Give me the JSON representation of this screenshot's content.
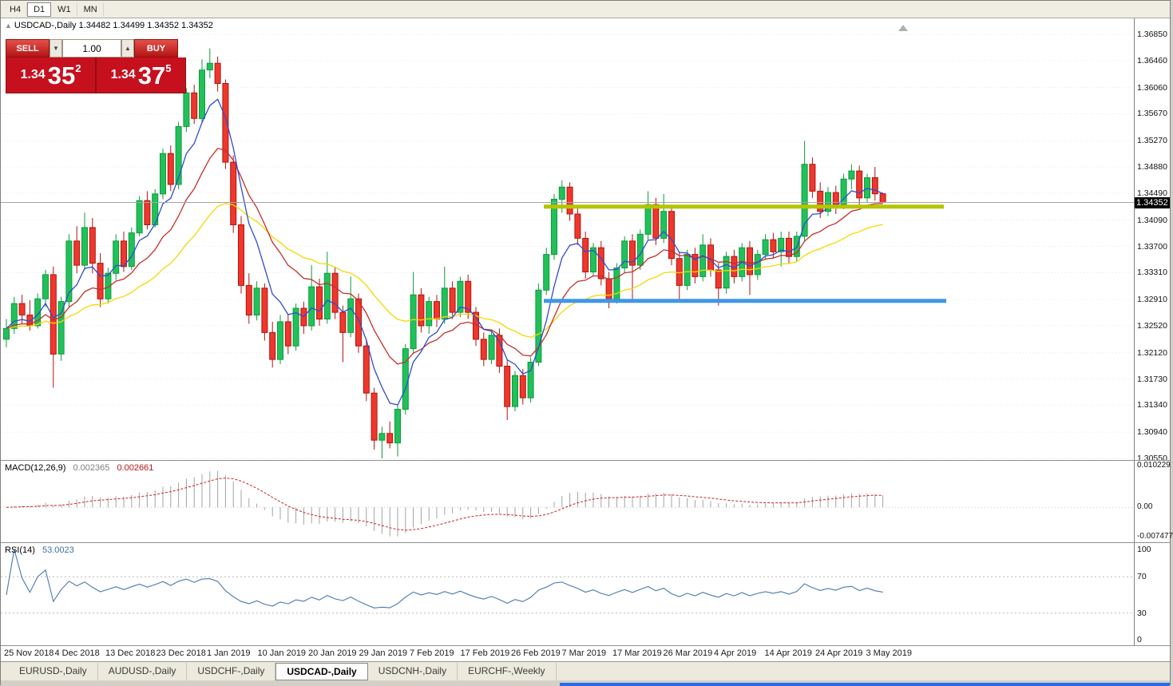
{
  "window": {
    "toolbar_tabs": [
      {
        "label": "H4",
        "active": false
      },
      {
        "label": "D1",
        "active": true
      },
      {
        "label": "W1",
        "active": false
      },
      {
        "label": "MN",
        "active": false
      }
    ]
  },
  "chart": {
    "title_line": "USDCAD-,Daily  1.34482 1.34499 1.34352 1.34352",
    "symbol": "USDCAD-,Daily",
    "open": "1.34482",
    "high": "1.34499",
    "low": "1.34352",
    "close": "1.34352"
  },
  "trade_panel": {
    "sell_label": "SELL",
    "buy_label": "BUY",
    "volume": "1.00",
    "spin_down": "▼",
    "spin_up": "▲",
    "sell_price": {
      "main": "1.34",
      "pips": "35",
      "sup": "2"
    },
    "buy_price": {
      "main": "1.34",
      "pips": "37",
      "sup": "5"
    }
  },
  "price_axis": {
    "labels": [
      "1.36850",
      "1.36460",
      "1.36060",
      "1.35670",
      "1.35270",
      "1.34880",
      "1.34490",
      "1.34090",
      "1.33700",
      "1.33310",
      "1.32910",
      "1.32520",
      "1.32120",
      "1.31730",
      "1.31340",
      "1.30940",
      "1.30550"
    ],
    "current": "1.34352",
    "current_value": 1.34352
  },
  "macd_panel": {
    "label": "MACD(12,26,9)",
    "value1": "0.002365",
    "value2": "0.002661",
    "axis": {
      "max_label": "0.010229",
      "zero_label": "0.00",
      "min_label": "-0.007477",
      "max": 0.010229,
      "min": -0.007477
    },
    "params": {
      "fast": 12,
      "slow": 26,
      "signal": 9
    }
  },
  "rsi_panel": {
    "label": "RSI(14)",
    "value": "53.0023",
    "period": 14,
    "axis_labels": {
      "top": "100",
      "upper": "70",
      "lower": "30",
      "bottom": "0"
    },
    "levels": [
      70,
      30
    ]
  },
  "date_axis": {
    "labels": [
      "25 Nov 2018",
      "4 Dec 2018",
      "13 Dec 2018",
      "23 Dec 2018",
      "1 Jan 2019",
      "10 Jan 2019",
      "20 Jan 2019",
      "29 Jan 2019",
      "7 Feb 2019",
      "17 Feb 2019",
      "26 Feb 2019",
      "7 Mar 2019",
      "17 Mar 2019",
      "26 Mar 2019",
      "4 Apr 2019",
      "14 Apr 2019",
      "24 Apr 2019",
      "3 May 2019"
    ]
  },
  "bottom_tabs": [
    {
      "label": "EURUSD-,Daily",
      "active": false
    },
    {
      "label": "AUDUSD-,Daily",
      "active": false
    },
    {
      "label": "USDCHF-,Daily",
      "active": false
    },
    {
      "label": "USDCAD-,Daily",
      "active": true
    },
    {
      "label": "USDCNH-,Daily",
      "active": false
    },
    {
      "label": "EURCHF-,Weekly",
      "active": false
    }
  ],
  "colors": {
    "candle_up": "#0e9a3c",
    "candle_up_fill": "#21c15a",
    "candle_down": "#b01410",
    "candle_down_fill": "#ef372c",
    "ma_fast": "#2f4cd0",
    "ma_mid": "#c33028",
    "ma_slow": "#f5d800",
    "macd_hist": "#a3a3a3",
    "macd_signal": "#cf1f1f",
    "rsi_line": "#4878b0",
    "grid": "#e8e8e8",
    "current_line": "#a6a6a6"
  },
  "chart_data": {
    "type": "candlestick",
    "symbol": "USDCAD",
    "timeframe": "Daily",
    "ylim": [
      1.3055,
      1.3685
    ],
    "overlays": {
      "ma_fast": {
        "period": 6
      },
      "ma_mid": {
        "period": 14
      },
      "ma_slow": {
        "period": 30
      }
    },
    "lines": [
      {
        "name": "resistance",
        "price": 1.3429,
        "color": "#b5c400",
        "x1": 680,
        "x2": 1181,
        "width": 5
      },
      {
        "name": "support",
        "price": 1.3289,
        "color": "#3f96e8",
        "x1": 680,
        "x2": 1184,
        "width": 5
      }
    ],
    "candles": [
      [
        1.3232,
        1.3262,
        1.322,
        1.3248
      ],
      [
        1.3248,
        1.3295,
        1.324,
        1.3285
      ],
      [
        1.3285,
        1.3298,
        1.3255,
        1.3268
      ],
      [
        1.3268,
        1.329,
        1.3245,
        1.3252
      ],
      [
        1.3252,
        1.33,
        1.3248,
        1.3292
      ],
      [
        1.3292,
        1.3335,
        1.328,
        1.3328
      ],
      [
        1.3328,
        1.334,
        1.316,
        1.321
      ],
      [
        1.321,
        1.3295,
        1.32,
        1.3288
      ],
      [
        1.3288,
        1.3388,
        1.328,
        1.3378
      ],
      [
        1.3378,
        1.34,
        1.333,
        1.3342
      ],
      [
        1.3342,
        1.342,
        1.3335,
        1.3398
      ],
      [
        1.3398,
        1.3412,
        1.333,
        1.3345
      ],
      [
        1.3345,
        1.336,
        1.328,
        1.3292
      ],
      [
        1.3292,
        1.3338,
        1.3285,
        1.333
      ],
      [
        1.333,
        1.3388,
        1.332,
        1.3378
      ],
      [
        1.3378,
        1.3392,
        1.3332,
        1.334
      ],
      [
        1.334,
        1.3398,
        1.3335,
        1.339
      ],
      [
        1.339,
        1.3445,
        1.3385,
        1.3438
      ],
      [
        1.3438,
        1.3452,
        1.3395,
        1.3402
      ],
      [
        1.3402,
        1.3455,
        1.3398,
        1.3448
      ],
      [
        1.3448,
        1.3515,
        1.344,
        1.3508
      ],
      [
        1.3508,
        1.352,
        1.3452,
        1.3462
      ],
      [
        1.3462,
        1.3555,
        1.3455,
        1.3548
      ],
      [
        1.3548,
        1.3605,
        1.354,
        1.3598
      ],
      [
        1.3598,
        1.361,
        1.3552,
        1.356
      ],
      [
        1.356,
        1.3648,
        1.3555,
        1.3632
      ],
      [
        1.3632,
        1.3664,
        1.362,
        1.3642
      ],
      [
        1.3642,
        1.3652,
        1.36,
        1.3612
      ],
      [
        1.3612,
        1.3618,
        1.3485,
        1.3495
      ],
      [
        1.3495,
        1.3505,
        1.339,
        1.3402
      ],
      [
        1.3402,
        1.3415,
        1.33,
        1.3312
      ],
      [
        1.3312,
        1.333,
        1.3255,
        1.3268
      ],
      [
        1.3268,
        1.3318,
        1.326,
        1.3308
      ],
      [
        1.3308,
        1.3315,
        1.323,
        1.3242
      ],
      [
        1.3242,
        1.3258,
        1.319,
        1.3202
      ],
      [
        1.3202,
        1.3268,
        1.3195,
        1.3258
      ],
      [
        1.3258,
        1.327,
        1.321,
        1.3222
      ],
      [
        1.3222,
        1.3285,
        1.3215,
        1.3278
      ],
      [
        1.3278,
        1.3288,
        1.324,
        1.3252
      ],
      [
        1.3252,
        1.3342,
        1.3245,
        1.331
      ],
      [
        1.331,
        1.3322,
        1.3252,
        1.3262
      ],
      [
        1.3262,
        1.3362,
        1.3255,
        1.333
      ],
      [
        1.333,
        1.334,
        1.3262,
        1.3272
      ],
      [
        1.3272,
        1.3282,
        1.3198,
        1.3242
      ],
      [
        1.3242,
        1.3325,
        1.3235,
        1.3292
      ],
      [
        1.3292,
        1.33,
        1.3212,
        1.3222
      ],
      [
        1.3222,
        1.3232,
        1.314,
        1.3152
      ],
      [
        1.3152,
        1.316,
        1.3068,
        1.3082
      ],
      [
        1.3082,
        1.3102,
        1.3055,
        1.3092
      ],
      [
        1.3092,
        1.311,
        1.307,
        1.3078
      ],
      [
        1.3078,
        1.3135,
        1.3058,
        1.3128
      ],
      [
        1.3128,
        1.3225,
        1.312,
        1.3218
      ],
      [
        1.3218,
        1.3332,
        1.321,
        1.3298
      ],
      [
        1.3298,
        1.3308,
        1.3242,
        1.3252
      ],
      [
        1.3252,
        1.3295,
        1.324,
        1.3288
      ],
      [
        1.3288,
        1.3298,
        1.325,
        1.3262
      ],
      [
        1.3262,
        1.334,
        1.3255,
        1.3308
      ],
      [
        1.3308,
        1.3318,
        1.3262,
        1.3272
      ],
      [
        1.3272,
        1.3325,
        1.3265,
        1.3318
      ],
      [
        1.3318,
        1.3328,
        1.3262,
        1.3272
      ],
      [
        1.3272,
        1.328,
        1.3222,
        1.3232
      ],
      [
        1.3232,
        1.3242,
        1.3192,
        1.3202
      ],
      [
        1.3202,
        1.3245,
        1.3195,
        1.3238
      ],
      [
        1.3238,
        1.3248,
        1.3182,
        1.3192
      ],
      [
        1.3192,
        1.3202,
        1.3112,
        1.3132
      ],
      [
        1.3132,
        1.3185,
        1.3125,
        1.3178
      ],
      [
        1.3178,
        1.3188,
        1.3135,
        1.3145
      ],
      [
        1.3145,
        1.3205,
        1.3138,
        1.3198
      ],
      [
        1.3198,
        1.3315,
        1.3192,
        1.3305
      ],
      [
        1.3305,
        1.3368,
        1.3298,
        1.3358
      ],
      [
        1.3358,
        1.3448,
        1.335,
        1.344
      ],
      [
        1.344,
        1.3468,
        1.342,
        1.3458
      ],
      [
        1.3458,
        1.3465,
        1.3408,
        1.3418
      ],
      [
        1.3418,
        1.3428,
        1.3372,
        1.3382
      ],
      [
        1.3382,
        1.3392,
        1.3322,
        1.3332
      ],
      [
        1.3332,
        1.3375,
        1.3325,
        1.3368
      ],
      [
        1.3368,
        1.3378,
        1.3312,
        1.3322
      ],
      [
        1.3322,
        1.3332,
        1.3278,
        1.3292
      ],
      [
        1.3292,
        1.3345,
        1.3285,
        1.3338
      ],
      [
        1.3338,
        1.3385,
        1.333,
        1.3378
      ],
      [
        1.3378,
        1.3388,
        1.329,
        1.3342
      ],
      [
        1.3342,
        1.3395,
        1.3335,
        1.3388
      ],
      [
        1.3388,
        1.3452,
        1.338,
        1.3432
      ],
      [
        1.3432,
        1.3442,
        1.3372,
        1.3382
      ],
      [
        1.3382,
        1.3448,
        1.3375,
        1.3422
      ],
      [
        1.3422,
        1.3432,
        1.3342,
        1.3352
      ],
      [
        1.3352,
        1.3362,
        1.3288,
        1.3312
      ],
      [
        1.3312,
        1.3365,
        1.3305,
        1.3358
      ],
      [
        1.3358,
        1.3368,
        1.3315,
        1.3325
      ],
      [
        1.3325,
        1.3388,
        1.3318,
        1.3372
      ],
      [
        1.3372,
        1.3382,
        1.3325,
        1.3335
      ],
      [
        1.3335,
        1.3345,
        1.3282,
        1.3308
      ],
      [
        1.3308,
        1.3362,
        1.33,
        1.3355
      ],
      [
        1.3355,
        1.3365,
        1.3315,
        1.3325
      ],
      [
        1.3325,
        1.3375,
        1.3318,
        1.3368
      ],
      [
        1.3368,
        1.3378,
        1.3298,
        1.3328
      ],
      [
        1.3328,
        1.3365,
        1.332,
        1.3358
      ],
      [
        1.3358,
        1.3388,
        1.335,
        1.338
      ],
      [
        1.338,
        1.339,
        1.3352,
        1.3362
      ],
      [
        1.3362,
        1.3392,
        1.334,
        1.3382
      ],
      [
        1.3382,
        1.3392,
        1.3345,
        1.3355
      ],
      [
        1.3355,
        1.3392,
        1.3348,
        1.3385
      ],
      [
        1.3385,
        1.3527,
        1.3378,
        1.3492
      ],
      [
        1.3492,
        1.3502,
        1.3442,
        1.3452
      ],
      [
        1.3452,
        1.3465,
        1.3412,
        1.3422
      ],
      [
        1.3422,
        1.3458,
        1.3415,
        1.345
      ],
      [
        1.345,
        1.346,
        1.3418,
        1.3432
      ],
      [
        1.3432,
        1.3478,
        1.3425,
        1.347
      ],
      [
        1.347,
        1.3492,
        1.3455,
        1.3482
      ],
      [
        1.3482,
        1.349,
        1.3432,
        1.3442
      ],
      [
        1.3442,
        1.3478,
        1.3435,
        1.3472
      ],
      [
        1.3472,
        1.3488,
        1.3438,
        1.3448
      ],
      [
        1.34482,
        1.34499,
        1.34352,
        1.34352
      ]
    ]
  }
}
